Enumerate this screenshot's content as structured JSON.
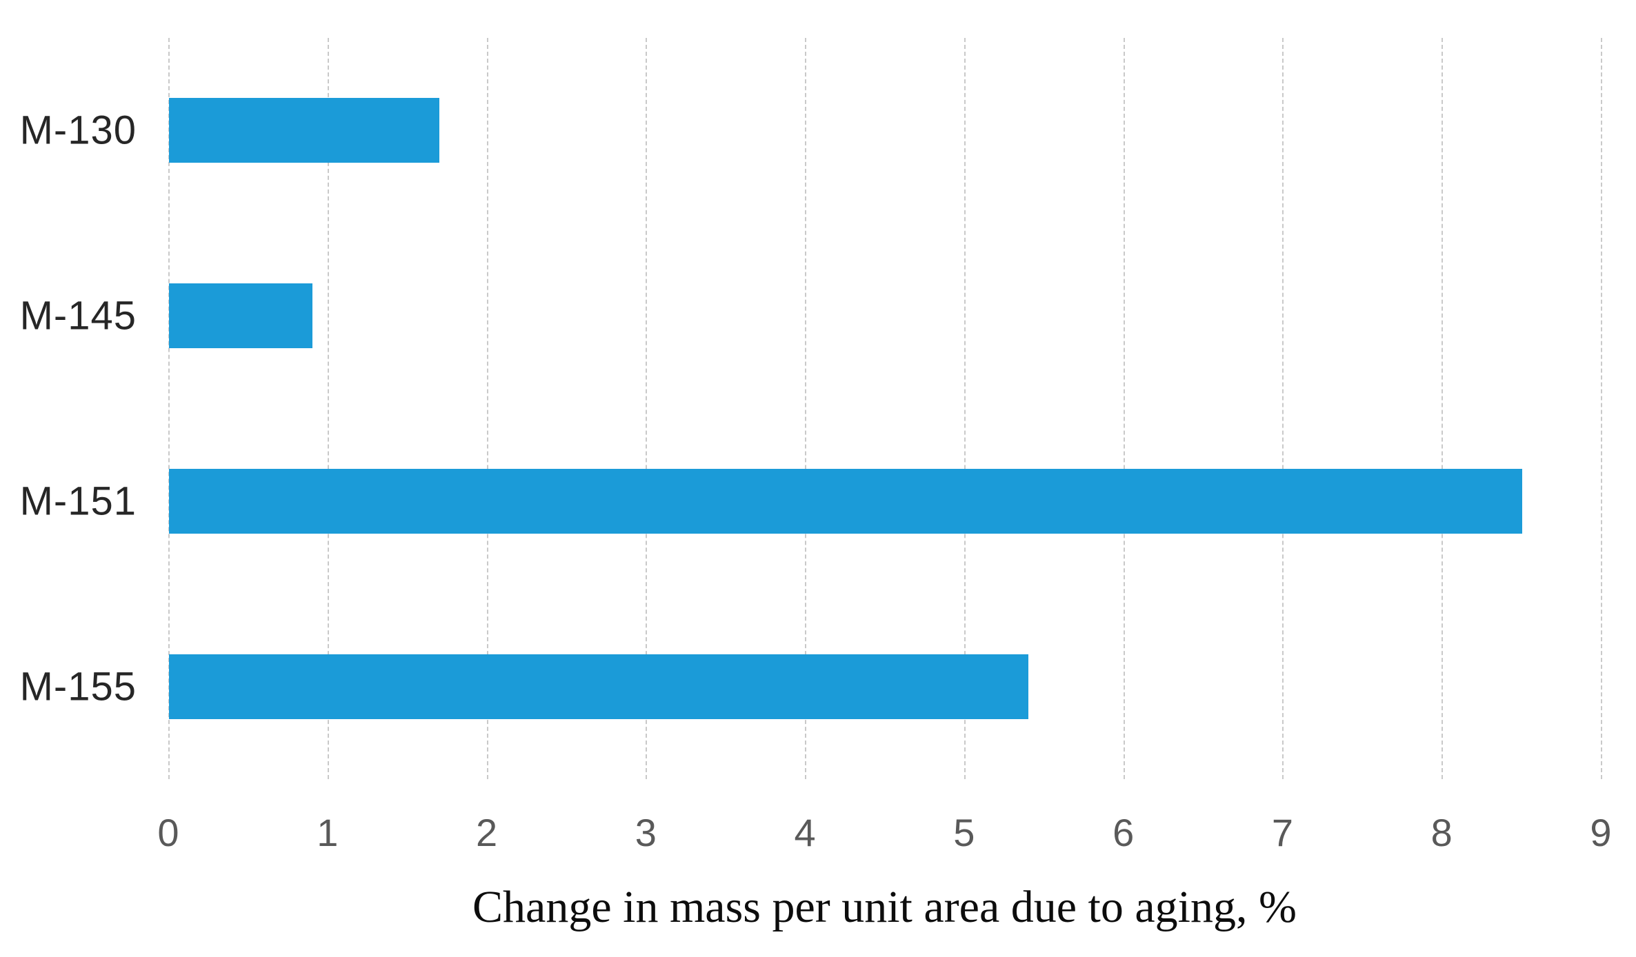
{
  "chart_data": {
    "type": "bar",
    "orientation": "horizontal",
    "title": "",
    "categories": [
      "M-130",
      "M-145",
      "M-151",
      "M-155"
    ],
    "values": [
      1.7,
      0.9,
      8.5,
      5.4
    ],
    "xlabel": "Change in mass per unit area due to aging, %",
    "ylabel": "",
    "xlim": [
      0,
      9
    ],
    "xticks": [
      0,
      1,
      2,
      3,
      4,
      5,
      6,
      7,
      8,
      9
    ],
    "grid": "vertical-dashed",
    "legend": "none",
    "colors": {
      "bar": "#1b9bd8",
      "gridline": "#c9c9c9",
      "tick_label": "#595959",
      "category_label": "#262626",
      "title_text": "#0d0d0d"
    }
  }
}
